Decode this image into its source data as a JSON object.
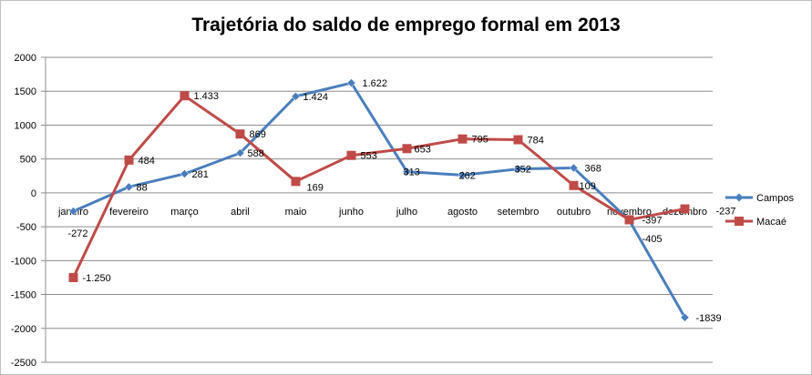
{
  "chart_data": {
    "type": "line",
    "title": "Trajetória do saldo de emprego formal em 2013",
    "categories": [
      "janeiro",
      "fevereiro",
      "março",
      "abril",
      "maio",
      "junho",
      "julho",
      "agosto",
      "setembro",
      "outubro",
      "novembro",
      "dezembro"
    ],
    "ylim": [
      -2500,
      2000
    ],
    "yticks": [
      2000,
      1500,
      1000,
      500,
      0,
      -500,
      -1000,
      -1500,
      -2000,
      -2500
    ],
    "grid": true,
    "legend": "right",
    "series": [
      {
        "name": "Campos",
        "color": "#4a7ebb",
        "marker": "diamond",
        "values": [
          -272,
          88,
          281,
          588,
          1424,
          1622,
          313,
          262,
          352,
          368,
          -405,
          -1839
        ],
        "labels": [
          "-272",
          "88",
          "281",
          "588",
          "1.424",
          "1.622",
          "313",
          "262",
          "352",
          "368",
          "-405",
          "-1839"
        ]
      },
      {
        "name": "Macaé",
        "color": "#be4b48",
        "marker": "square",
        "values": [
          -1250,
          484,
          1433,
          869,
          169,
          553,
          653,
          795,
          784,
          109,
          -397,
          -237
        ],
        "labels": [
          "-1.250",
          "484",
          "1.433",
          "869",
          "169",
          "553",
          "653",
          "795",
          "784",
          "109",
          "-397",
          "-237"
        ]
      }
    ]
  }
}
